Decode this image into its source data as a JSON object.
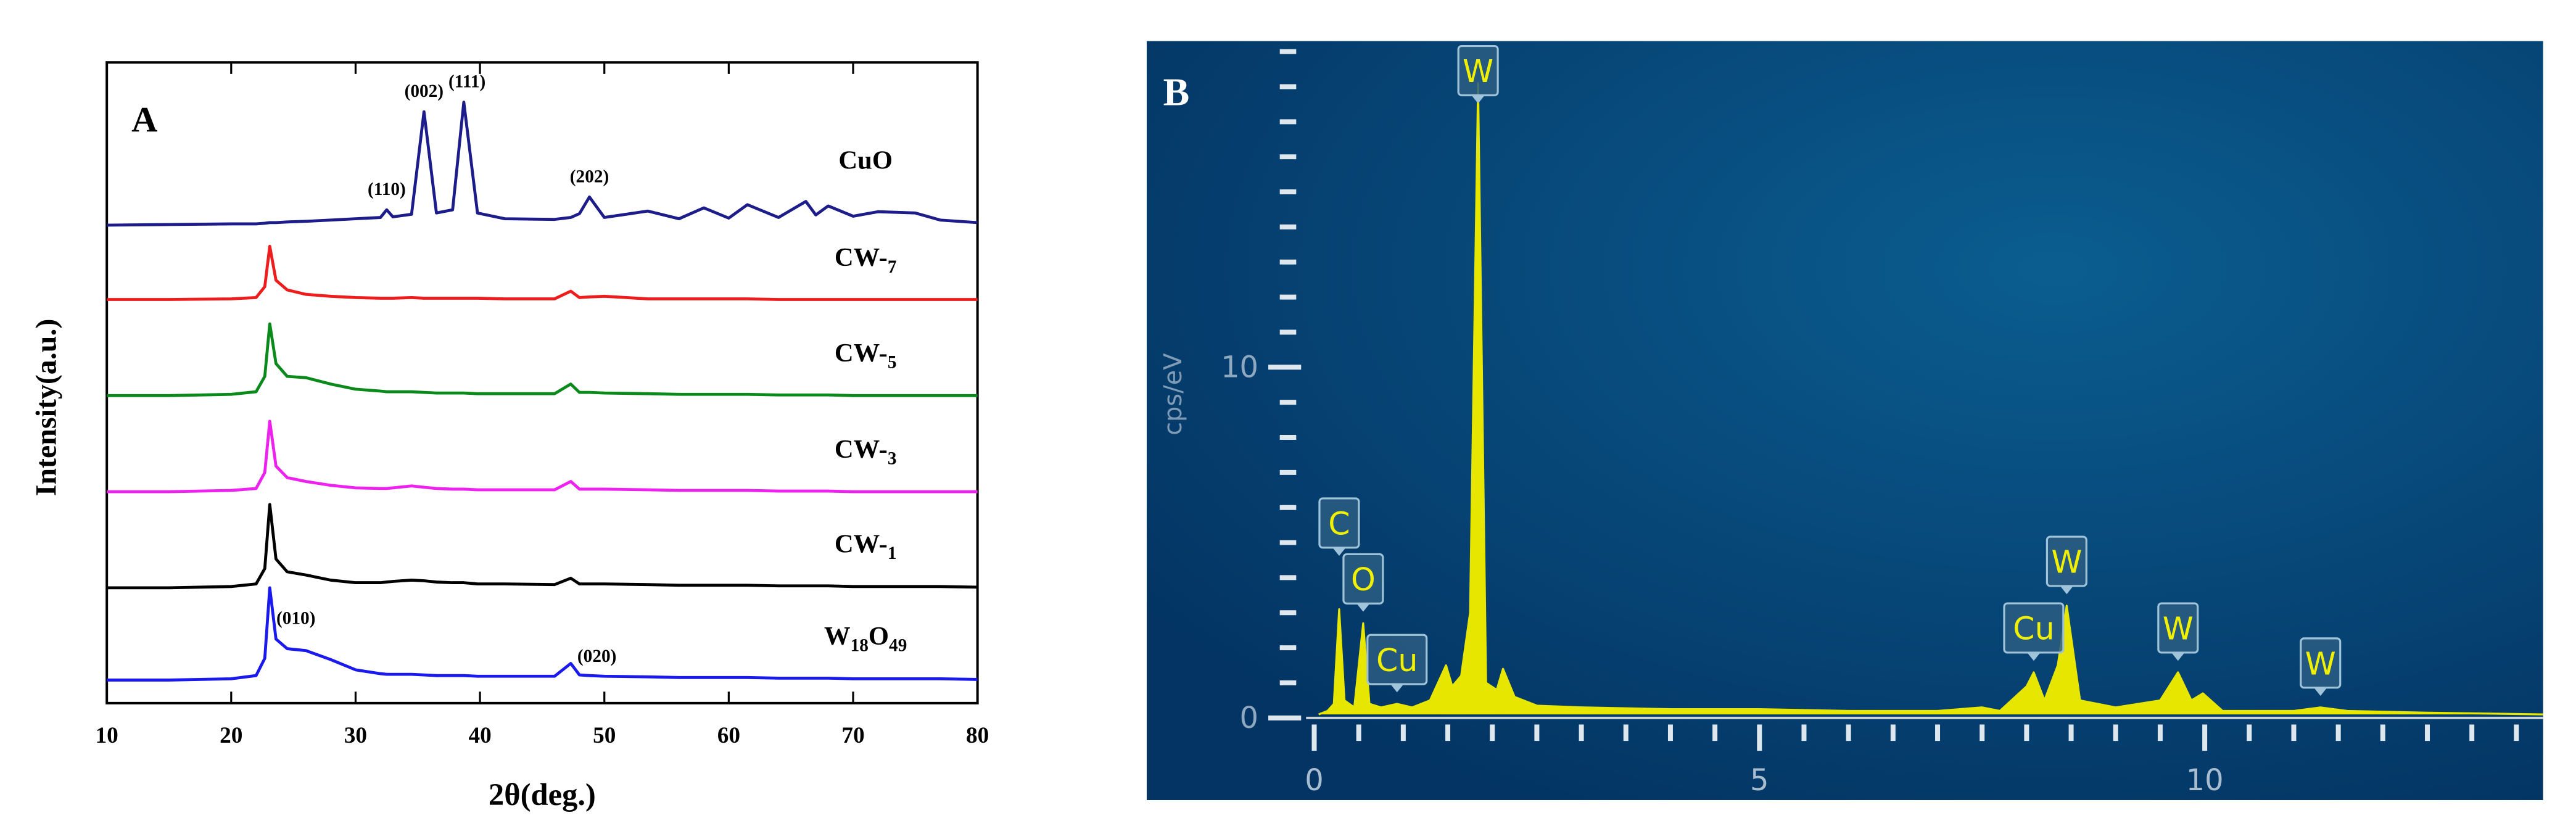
{
  "chart_data": [
    {
      "type": "line",
      "panel_label": "A",
      "xlabel": "2θ(deg.)",
      "ylabel": "Intensity(a.u.)",
      "xlim": [
        10,
        80
      ],
      "xticks": [
        10,
        20,
        30,
        40,
        50,
        60,
        70,
        80
      ],
      "ylim": [
        0,
        100
      ],
      "x": [
        10,
        15,
        20,
        22,
        22.7,
        23.1,
        23.6,
        24.5,
        26,
        28,
        30,
        32,
        32.5,
        33,
        34.5,
        35.5,
        36.5,
        37.8,
        38.7,
        39.8,
        42,
        46,
        47.3,
        48,
        48.8,
        50,
        53.5,
        56,
        58,
        60,
        61.5,
        64,
        66.2,
        67,
        68,
        70,
        72,
        75,
        77,
        80
      ],
      "series": [
        {
          "name": "CuO",
          "color": "#1c1c8a",
          "values": [
            74.6,
            74.7,
            74.8,
            74.8,
            74.9,
            75,
            75,
            75.1,
            75.2,
            75.4,
            75.6,
            75.8,
            77,
            75.9,
            76.3,
            92.3,
            76.5,
            77,
            93.8,
            76.5,
            75.6,
            75.5,
            75.8,
            76.4,
            79,
            75.8,
            76.8,
            75.6,
            77.3,
            75.7,
            77.8,
            75.8,
            78.3,
            76.2,
            77.6,
            76,
            76.7,
            76.5,
            75.4,
            75
          ],
          "peak_labels": [
            {
              "label": "(110)",
              "x": 32.5
            },
            {
              "label": "(002)",
              "x": 35.5
            },
            {
              "label": "(111)",
              "x": 38.7
            },
            {
              "label": "(202)",
              "x": 48.8
            }
          ]
        },
        {
          "name": "CW-7",
          "color": "#ee1c1c",
          "values": [
            63,
            63,
            63.1,
            63.3,
            65,
            71.3,
            66,
            64.5,
            63.8,
            63.5,
            63.3,
            63.2,
            63.2,
            63.2,
            63.3,
            63.2,
            63.2,
            63.2,
            63.2,
            63.2,
            63.1,
            63.1,
            64.3,
            63.3,
            63.4,
            63.5,
            63.1,
            63.1,
            63.1,
            63.1,
            63.1,
            63,
            63,
            63,
            63,
            63,
            63,
            63,
            63,
            63
          ]
        },
        {
          "name": "CW-5",
          "color": "#0b8a1c",
          "values": [
            48,
            48,
            48.2,
            48.6,
            51,
            59.2,
            53,
            51,
            50.8,
            49.8,
            49,
            48.7,
            48.6,
            48.6,
            48.6,
            48.5,
            48.4,
            48.4,
            48.4,
            48.3,
            48.3,
            48.3,
            49.8,
            48.5,
            48.5,
            48.4,
            48.3,
            48.2,
            48.2,
            48.2,
            48.2,
            48.1,
            48.1,
            48.1,
            48.1,
            48,
            48,
            48,
            48,
            48
          ]
        },
        {
          "name": "CW-3",
          "color": "#ee22ee",
          "values": [
            33,
            33,
            33.2,
            33.5,
            36,
            44,
            37,
            35.2,
            34.6,
            34,
            33.6,
            33.5,
            33.5,
            33.6,
            33.9,
            33.7,
            33.5,
            33.4,
            33.4,
            33.3,
            33.3,
            33.3,
            34.6,
            33.4,
            33.4,
            33.4,
            33.3,
            33.2,
            33.2,
            33.2,
            33.2,
            33.1,
            33.1,
            33.1,
            33.1,
            33,
            33,
            33,
            33,
            33
          ]
        },
        {
          "name": "CW-1",
          "color": "#000000",
          "values": [
            18,
            18,
            18.2,
            18.6,
            21,
            31,
            22.5,
            20.5,
            20,
            19.2,
            18.8,
            18.8,
            18.9,
            19,
            19.2,
            19.1,
            18.9,
            18.8,
            18.8,
            18.6,
            18.6,
            18.5,
            19.5,
            18.6,
            18.6,
            18.6,
            18.5,
            18.4,
            18.4,
            18.4,
            18.4,
            18.3,
            18.3,
            18.3,
            18.3,
            18.2,
            18.2,
            18.2,
            18.2,
            18.1
          ]
        },
        {
          "name": "W18O49",
          "color": "#1a1aee",
          "values": [
            3.6,
            3.6,
            3.8,
            4.3,
            7,
            18,
            10,
            8.5,
            8.2,
            6.8,
            5.2,
            4.6,
            4.5,
            4.5,
            4.5,
            4.4,
            4.3,
            4.3,
            4.3,
            4.2,
            4.2,
            4.2,
            6.2,
            4.4,
            4.3,
            4.2,
            4.1,
            4,
            4,
            4,
            4,
            3.9,
            3.9,
            3.9,
            3.9,
            3.8,
            3.8,
            3.8,
            3.8,
            3.7
          ],
          "peak_labels": [
            {
              "label": "(010)",
              "x": 23.1
            },
            {
              "label": "(020)",
              "x": 47.3
            }
          ]
        }
      ]
    },
    {
      "type": "area",
      "panel_label": "B",
      "ylabel": "cps/eV",
      "color": "#e6e600",
      "xlim": [
        -0.3,
        13.8
      ],
      "xticks": [
        0,
        5,
        10
      ],
      "xminorticks": [
        0.5,
        1,
        1.5,
        2,
        2.5,
        3,
        3.5,
        4,
        4.5,
        5.5,
        6,
        6.5,
        7,
        7.5,
        8,
        8.5,
        9,
        9.5,
        10.5,
        11,
        11.5,
        12,
        12.5,
        13,
        13.5
      ],
      "ylim": [
        0,
        19.3
      ],
      "yticks": [
        0,
        10
      ],
      "yminorticks": [
        1,
        2,
        3,
        4,
        5,
        6,
        7,
        8,
        9,
        11,
        12,
        13,
        14,
        15,
        16,
        17,
        18,
        19
      ],
      "x": [
        0.05,
        0.15,
        0.22,
        0.28,
        0.34,
        0.45,
        0.55,
        0.62,
        0.75,
        0.93,
        1.1,
        1.3,
        1.48,
        1.55,
        1.65,
        1.75,
        1.84,
        1.93,
        2.05,
        2.12,
        2.25,
        2.5,
        3,
        4,
        5,
        6,
        7,
        7.5,
        7.7,
        8.0,
        8.08,
        8.2,
        8.35,
        8.45,
        8.6,
        9.0,
        9.5,
        9.7,
        9.85,
        9.98,
        10.2,
        11,
        11.3,
        11.6,
        12.5,
        13.8
      ],
      "values": [
        0.1,
        0.2,
        0.4,
        3.1,
        0.5,
        0.3,
        2.7,
        0.4,
        0.3,
        0.4,
        0.3,
        0.5,
        1.5,
        0.9,
        1.2,
        3,
        18.1,
        1,
        0.8,
        1.4,
        0.6,
        0.35,
        0.3,
        0.25,
        0.25,
        0.2,
        0.2,
        0.3,
        0.2,
        0.9,
        1.3,
        0.5,
        1.5,
        3.2,
        0.5,
        0.3,
        0.5,
        1.3,
        0.5,
        0.7,
        0.2,
        0.2,
        0.3,
        0.2,
        0.15,
        0.1
      ],
      "peak_labels": [
        {
          "label": "C",
          "x": 0.28
        },
        {
          "label": "O",
          "x": 0.55
        },
        {
          "label": "Cu",
          "x": 0.93
        },
        {
          "label": "W",
          "x": 1.84
        },
        {
          "label": "Cu",
          "x": 8.08
        },
        {
          "label": "W",
          "x": 8.45
        },
        {
          "label": "W",
          "x": 9.7
        },
        {
          "label": "W",
          "x": 11.3
        }
      ]
    }
  ]
}
